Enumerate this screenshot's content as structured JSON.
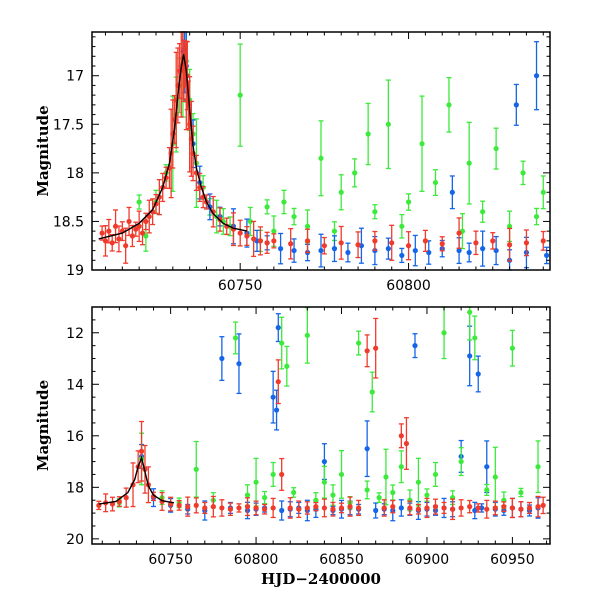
{
  "chart_data": [
    {
      "type": "scatter",
      "panel": "top",
      "title": "",
      "xlabel": "",
      "ylabel": "Magnitude",
      "xlim": [
        60706,
        60842
      ],
      "ylim": [
        16.55,
        19.0
      ],
      "y_inverted": true,
      "xticks": [
        60750,
        60800
      ],
      "xtick_labels": [
        "60750",
        "60800"
      ],
      "yticks": [
        17,
        17.5,
        18,
        18.5,
        19
      ],
      "ytick_labels": [
        "17",
        "17.5",
        "18",
        "18.5",
        "19"
      ],
      "model_curve": {
        "name": "outburst model",
        "color": "#000000",
        "x": [
          60708,
          60715,
          60720,
          60724,
          60727,
          60729,
          60730.5,
          60731.5,
          60732.5,
          60733.2,
          60734,
          60735,
          60736,
          60737,
          60738.5,
          60740,
          60742,
          60745,
          60748,
          60752
        ],
        "y": [
          18.68,
          18.62,
          18.52,
          18.38,
          18.15,
          17.9,
          17.55,
          17.2,
          16.92,
          16.78,
          16.95,
          17.35,
          17.72,
          17.95,
          18.15,
          18.3,
          18.42,
          18.52,
          18.57,
          18.6
        ]
      },
      "series": [
        {
          "name": "red",
          "color": "#f03a2c",
          "x": [
            60709,
            60710,
            60711,
            60712,
            60713,
            60714,
            60715,
            60716,
            60717,
            60718,
            60719,
            60720,
            60721,
            60722,
            60723,
            60724,
            60725,
            60726,
            60727,
            60728,
            60729,
            60729.5,
            60730,
            60730.5,
            60731,
            60731.5,
            60732,
            60732.5,
            60733,
            60733.3,
            60733.6,
            60734,
            60734.3,
            60734.6,
            60735,
            60735.5,
            60736,
            60737,
            60738,
            60739,
            60740,
            60742,
            60744,
            60746,
            60748,
            60750,
            60752,
            60754,
            60756,
            60758,
            60760,
            60765,
            60770,
            60775,
            60780,
            60785,
            60790,
            60795,
            60800,
            60805,
            60810,
            60815,
            60820,
            60825,
            60830,
            60835,
            60840
          ],
          "y": [
            18.62,
            18.7,
            18.6,
            18.72,
            18.55,
            18.68,
            18.6,
            18.75,
            18.5,
            18.65,
            18.58,
            18.55,
            18.62,
            18.5,
            18.45,
            18.4,
            18.32,
            18.25,
            18.15,
            18.05,
            17.95,
            17.8,
            17.6,
            17.45,
            17.25,
            17.1,
            16.95,
            16.9,
            16.82,
            16.95,
            16.88,
            17.1,
            17.0,
            17.3,
            17.5,
            17.65,
            17.8,
            18.0,
            18.15,
            18.25,
            18.3,
            18.4,
            18.48,
            18.55,
            18.58,
            18.62,
            18.65,
            18.68,
            18.7,
            18.72,
            18.7,
            18.73,
            18.7,
            18.75,
            18.72,
            18.74,
            18.7,
            18.72,
            18.75,
            18.7,
            18.73,
            18.62,
            18.72,
            18.7,
            18.74,
            18.72,
            18.7
          ]
        },
        {
          "name": "green",
          "color": "#3cea3c",
          "x": [
            60720,
            60722,
            60725,
            60728,
            60730,
            60731,
            60732,
            60733,
            60734,
            60735,
            60736,
            60737,
            60739,
            60741,
            60743,
            60745,
            60747,
            60750,
            60753,
            60756,
            60758,
            60760,
            60763,
            60766,
            60770,
            60774,
            60778,
            60780,
            60784,
            60788,
            60790,
            60794,
            60798,
            60800,
            60804,
            60808,
            60812,
            60816,
            60818,
            60822,
            60826,
            60830,
            60834,
            60838,
            60840
          ],
          "y": [
            18.3,
            18.65,
            18.3,
            18.0,
            17.7,
            17.4,
            17.1,
            16.9,
            16.85,
            17.25,
            17.6,
            17.9,
            18.15,
            18.35,
            18.45,
            18.5,
            18.55,
            17.2,
            18.5,
            18.7,
            18.35,
            18.6,
            18.3,
            18.45,
            18.55,
            17.85,
            18.6,
            18.2,
            18.0,
            17.6,
            18.4,
            17.5,
            18.55,
            18.3,
            17.7,
            18.1,
            17.3,
            18.6,
            17.9,
            18.4,
            17.75,
            18.55,
            18.0,
            18.45,
            18.2
          ]
        },
        {
          "name": "blue",
          "color": "#1565e8",
          "x": [
            60733,
            60733.5,
            60734,
            60736,
            60738,
            60741,
            60744,
            60748,
            60752,
            60755,
            60758,
            60762,
            60766,
            60770,
            60774,
            60778,
            60782,
            60786,
            60790,
            60794,
            60798,
            60802,
            60806,
            60810,
            60813,
            60815,
            60818,
            60822,
            60826,
            60830,
            60832,
            60835,
            60838,
            60841
          ],
          "y": [
            16.75,
            16.72,
            16.9,
            17.7,
            18.1,
            18.35,
            18.45,
            18.55,
            18.62,
            18.7,
            18.72,
            18.78,
            18.8,
            18.82,
            18.8,
            18.78,
            18.82,
            18.75,
            18.8,
            18.78,
            18.85,
            18.8,
            18.82,
            18.78,
            18.2,
            18.8,
            18.82,
            18.78,
            18.8,
            18.9,
            17.3,
            18.82,
            17.0,
            18.85
          ]
        }
      ]
    },
    {
      "type": "scatter",
      "panel": "bottom",
      "title": "",
      "xlabel": "HJD−2400000",
      "ylabel": "Magnitude",
      "xlim": [
        60704,
        60972
      ],
      "ylim": [
        11.0,
        20.2
      ],
      "y_inverted": true,
      "xticks": [
        60750,
        60800,
        60850,
        60900,
        60950
      ],
      "xtick_labels": [
        "60750",
        "60800",
        "60850",
        "60900",
        "60950"
      ],
      "yticks": [
        12,
        14,
        16,
        18,
        20
      ],
      "ytick_labels": [
        "12",
        "14",
        "16",
        "18",
        "20"
      ],
      "model_curve": {
        "name": "outburst model",
        "color": "#000000",
        "x": [
          60708,
          60718,
          60725,
          60729,
          60731,
          60733,
          60735,
          60737,
          60740,
          60745,
          60752
        ],
        "y": [
          18.65,
          18.55,
          18.2,
          17.7,
          17.2,
          16.85,
          17.4,
          17.95,
          18.3,
          18.52,
          18.6
        ]
      },
      "series": [
        {
          "name": "blue",
          "color": "#1565e8",
          "x": [
            60733,
            60740,
            60750,
            60760,
            60770,
            60780,
            60785,
            60790,
            60795,
            60800,
            60805,
            60810,
            60812,
            60813,
            60815,
            60820,
            60825,
            60830,
            60835,
            60840,
            60845,
            60850,
            60855,
            60860,
            60865,
            60870,
            60875,
            60880,
            60885,
            60890,
            60893,
            60895,
            60900,
            60905,
            60910,
            60915,
            60920,
            60925,
            60928,
            60930,
            60932,
            60935,
            60940,
            60945,
            60950,
            60955,
            60960,
            60965
          ],
          "y": [
            16.8,
            18.4,
            18.7,
            18.85,
            18.9,
            13.0,
            18.8,
            13.2,
            18.9,
            18.85,
            18.8,
            14.5,
            15.0,
            11.8,
            18.9,
            18.85,
            18.8,
            18.9,
            18.85,
            17.0,
            18.9,
            18.85,
            18.8,
            18.85,
            16.5,
            18.9,
            18.85,
            18.9,
            18.8,
            18.85,
            12.5,
            18.9,
            18.85,
            18.9,
            18.8,
            18.85,
            16.8,
            12.9,
            18.9,
            13.6,
            18.8,
            17.2,
            18.85,
            18.9,
            18.8,
            18.85,
            18.9,
            18.8
          ]
        },
        {
          "name": "green",
          "color": "#3cea3c",
          "x": [
            60720,
            60733,
            60745,
            60755,
            60765,
            60775,
            60788,
            60795,
            60800,
            60805,
            60810,
            60815,
            60818,
            60822,
            60830,
            60835,
            60840,
            60845,
            60850,
            60855,
            60860,
            60865,
            60868,
            60872,
            60876,
            60880,
            60885,
            60890,
            60895,
            60900,
            60905,
            60910,
            60915,
            60920,
            60925,
            60928,
            60935,
            60940,
            60945,
            60950,
            60955,
            60965
          ],
          "y": [
            18.6,
            16.9,
            18.4,
            18.6,
            17.3,
            18.5,
            12.2,
            18.3,
            17.8,
            18.4,
            17.5,
            12.4,
            13.3,
            18.2,
            12.1,
            18.5,
            17.8,
            18.3,
            17.5,
            18.6,
            12.4,
            18.1,
            14.3,
            18.4,
            17.6,
            18.2,
            17.2,
            18.5,
            17.8,
            18.3,
            17.5,
            12.0,
            18.4,
            17.0,
            11.2,
            12.2,
            18.1,
            17.6,
            18.5,
            12.6,
            18.2,
            17.2
          ]
        },
        {
          "name": "red",
          "color": "#f03a2c",
          "x": [
            60708,
            60712,
            60716,
            60720,
            60724,
            60728,
            60731,
            60733,
            60735,
            60737,
            60740,
            60745,
            60750,
            60755,
            60760,
            60765,
            60770,
            60775,
            60780,
            60785,
            60790,
            60795,
            60800,
            60805,
            60810,
            60813,
            60815,
            60820,
            60825,
            60830,
            60835,
            60840,
            60845,
            60850,
            60855,
            60860,
            60865,
            60870,
            60875,
            60880,
            60885,
            60888,
            60890,
            60895,
            60900,
            60905,
            60910,
            60915,
            60920,
            60925,
            60930,
            60935,
            60940,
            60945,
            60950,
            60955,
            60960,
            60965,
            60968
          ],
          "y": [
            18.7,
            18.6,
            18.65,
            18.55,
            18.4,
            17.9,
            17.2,
            16.6,
            17.3,
            17.9,
            18.35,
            18.55,
            18.65,
            18.7,
            18.75,
            18.7,
            18.8,
            18.75,
            18.8,
            18.85,
            18.8,
            18.75,
            18.8,
            18.85,
            18.8,
            13.9,
            17.5,
            18.8,
            18.85,
            18.8,
            18.75,
            18.8,
            18.85,
            18.8,
            18.75,
            18.8,
            12.7,
            12.6,
            18.8,
            18.75,
            16.0,
            16.3,
            18.8,
            18.85,
            18.8,
            18.75,
            18.8,
            18.85,
            18.8,
            18.75,
            18.8,
            18.85,
            18.8,
            18.75,
            18.8,
            18.85,
            18.8,
            18.75,
            18.7
          ]
        }
      ]
    }
  ]
}
